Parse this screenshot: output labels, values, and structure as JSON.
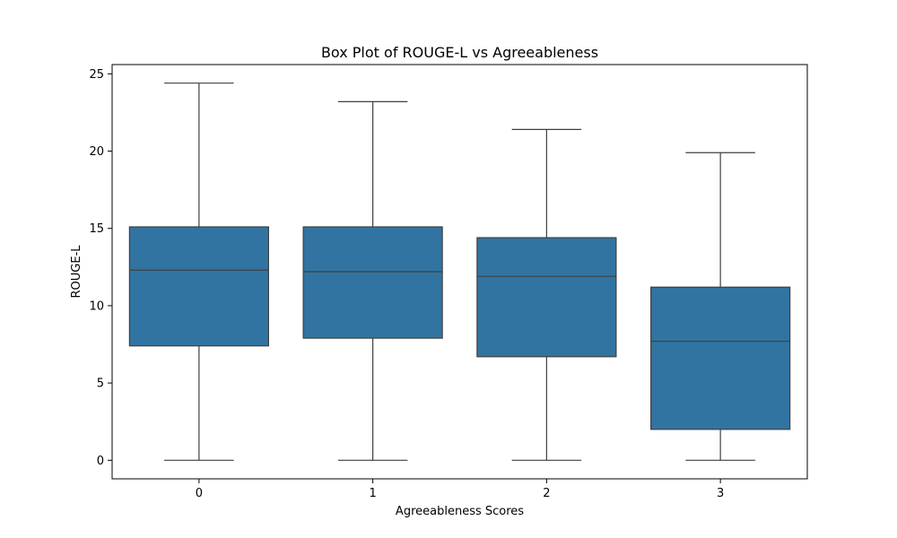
{
  "chart_data": {
    "type": "box",
    "title": "Box Plot of ROUGE-L vs Agreeableness",
    "xlabel": "Agreeableness Scores",
    "ylabel": "ROUGE-L",
    "categories": [
      "0",
      "1",
      "2",
      "3"
    ],
    "ylim": [
      -1.2,
      25.6
    ],
    "yticks": [
      "0",
      "5",
      "10",
      "15",
      "20",
      "25"
    ],
    "ytick_values": [
      0,
      5,
      10,
      15,
      20,
      25
    ],
    "grid": false,
    "box_color": "#3274a1",
    "line_color": "#3f3f3f",
    "boxes": [
      {
        "category": "0",
        "whisker_low": 0,
        "q1": 7.4,
        "median": 12.3,
        "q3": 15.1,
        "whisker_high": 24.4
      },
      {
        "category": "1",
        "whisker_low": 0,
        "q1": 7.9,
        "median": 12.2,
        "q3": 15.1,
        "whisker_high": 23.2
      },
      {
        "category": "2",
        "whisker_low": 0,
        "q1": 6.7,
        "median": 11.9,
        "q3": 14.4,
        "whisker_high": 21.4
      },
      {
        "category": "3",
        "whisker_low": 0,
        "q1": 2.0,
        "median": 7.7,
        "q3": 11.2,
        "whisker_high": 19.9
      }
    ]
  }
}
